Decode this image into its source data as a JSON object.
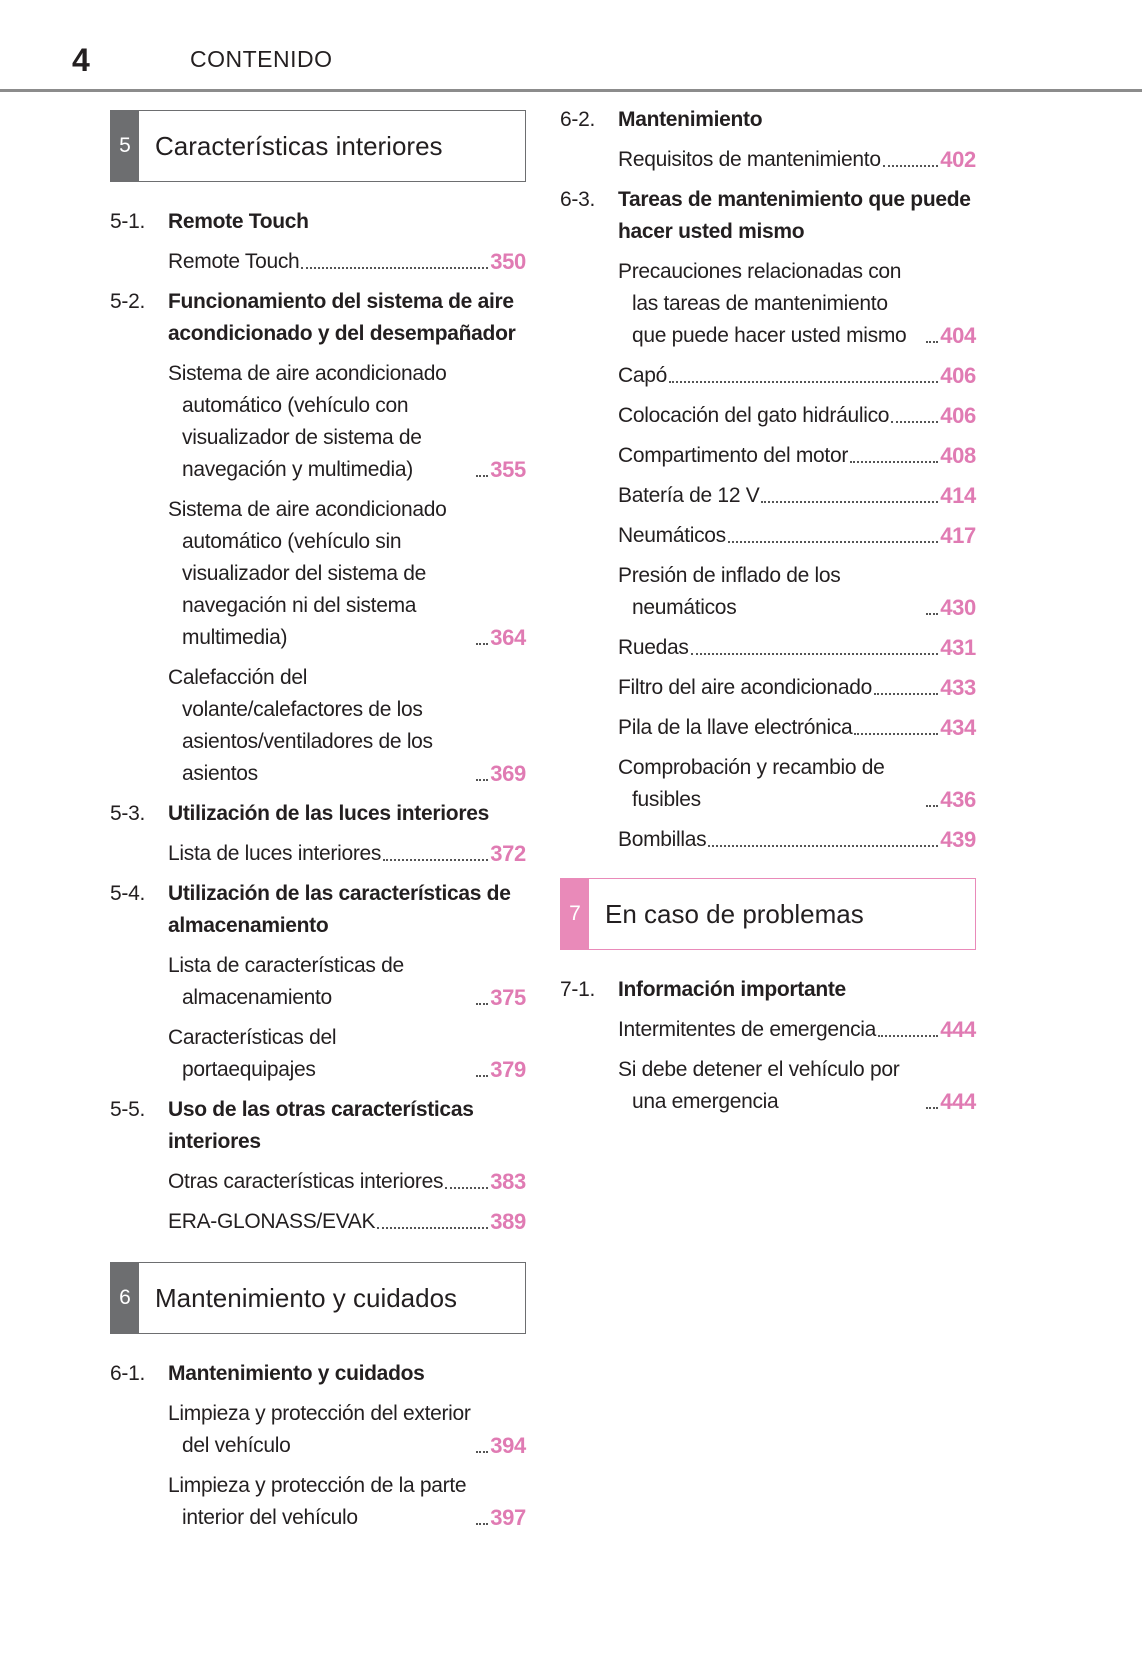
{
  "header": {
    "page_number": "4",
    "title": "CONTENIDO"
  },
  "columns": [
    [
      {
        "chapter_number": "5",
        "chapter_title": "Características interiores",
        "color": "#6d6e70"
      },
      {
        "number": "5-1.",
        "title": "Remote Touch",
        "entries": [
          {
            "title": "Remote Touch",
            "page": "350"
          }
        ]
      },
      {
        "number": "5-2.",
        "title": "Funcionamiento del sistema de aire acondicionado y del desempañador",
        "entries": [
          {
            "title": "Sistema de aire acondicionado automático (vehículo con visualizador de sistema de navegación y multimedia)",
            "page": "355"
          },
          {
            "title": "Sistema de aire acondicionado automático (vehículo sin visualizador del sistema de navegación ni del sistema multimedia)",
            "page": "364"
          },
          {
            "title": "Calefacción del volante/calefactores de los asientos/ventiladores de los asientos",
            "page": "369"
          }
        ]
      },
      {
        "number": "5-3.",
        "title": "Utilización de las luces interiores",
        "entries": [
          {
            "title": "Lista de luces interiores",
            "page": "372"
          }
        ]
      },
      {
        "number": "5-4.",
        "title": "Utilización de las características de almacenamiento",
        "entries": [
          {
            "title": "Lista de características de almacenamiento",
            "page": "375"
          },
          {
            "title": "Características del portaequipajes",
            "page": "379"
          }
        ]
      },
      {
        "number": "5-5.",
        "title": "Uso de las otras características interiores",
        "entries": [
          {
            "title": "Otras características interiores",
            "page": "383"
          },
          {
            "title": "ERA-GLONASS/EVAK",
            "page": "389"
          }
        ]
      },
      {
        "chapter_number": "6",
        "chapter_title": "Mantenimiento y cuidados",
        "color": "#6d6e70"
      },
      {
        "number": "6-1.",
        "title": "Mantenimiento y cuidados",
        "entries": [
          {
            "title": "Limpieza y protección del exterior del vehículo",
            "page": "394"
          },
          {
            "title": "Limpieza y protección de la parte interior del vehículo",
            "page": "397"
          }
        ]
      }
    ],
    [
      {
        "number": "6-2.",
        "title": "Mantenimiento",
        "entries": [
          {
            "title": "Requisitos de mantenimiento",
            "page": "402"
          }
        ]
      },
      {
        "number": "6-3.",
        "title": "Tareas de mantenimiento que puede hacer usted mismo",
        "entries": [
          {
            "title": "Precauciones relacionadas con las tareas de mantenimiento que puede hacer usted mismo",
            "page": "404"
          },
          {
            "title": "Capó",
            "page": "406"
          },
          {
            "title": "Colocación del gato hidráulico",
            "page": "406"
          },
          {
            "title": "Compartimento del motor",
            "page": "408"
          },
          {
            "title": "Batería de 12 V",
            "page": "414"
          },
          {
            "title": "Neumáticos",
            "page": "417"
          },
          {
            "title": "Presión de inflado de los neumáticos",
            "page": "430"
          },
          {
            "title": "Ruedas",
            "page": "431"
          },
          {
            "title": "Filtro del aire acondicionado",
            "page": "433"
          },
          {
            "title": "Pila de la llave electrónica",
            "page": "434"
          },
          {
            "title": "Comprobación y recambio de fusibles",
            "page": "436"
          },
          {
            "title": "Bombillas",
            "page": "439"
          }
        ]
      },
      {
        "chapter_number": "7",
        "chapter_title": "En caso de problemas",
        "color": "#e98ab9"
      },
      {
        "number": "7-1.",
        "title": "Información importante",
        "entries": [
          {
            "title": "Intermitentes de emergencia",
            "page": "444"
          },
          {
            "title": "Si debe detener el vehículo por una emergencia",
            "page": "444"
          }
        ]
      }
    ]
  ]
}
